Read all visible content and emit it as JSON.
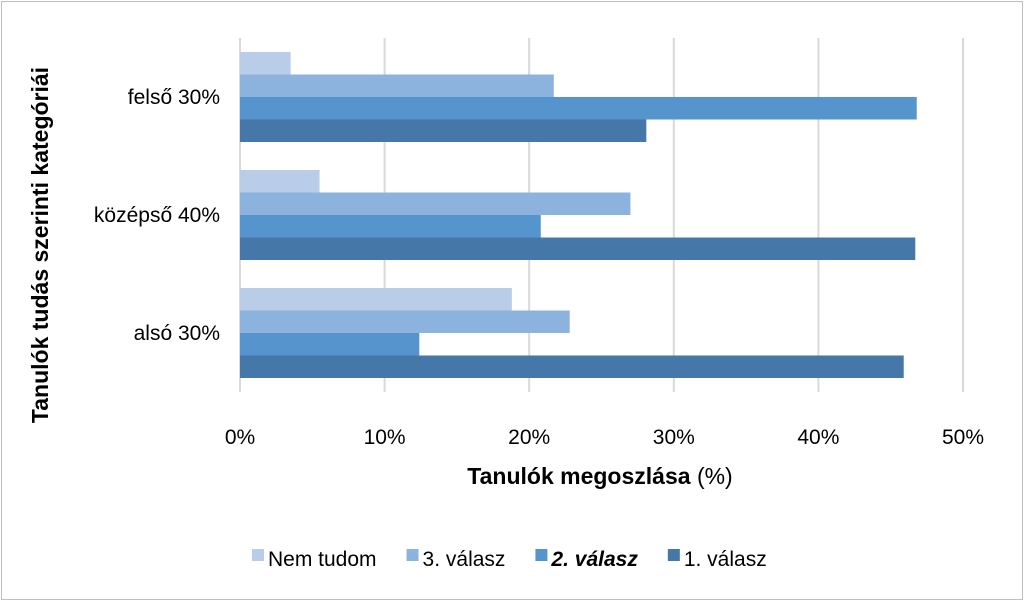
{
  "chart_data": {
    "type": "bar",
    "orientation": "horizontal",
    "categories": [
      "alsó 30%",
      "középső 40%",
      "felső 30%"
    ],
    "series": [
      {
        "name": "Nem tudom",
        "values": [
          18.8,
          5.5,
          3.5
        ],
        "color": "#b9cde8"
      },
      {
        "name": "3. válasz",
        "values": [
          22.8,
          27.0,
          21.7
        ],
        "color": "#8cb2de"
      },
      {
        "name": "2. válasz",
        "values": [
          12.4,
          20.8,
          46.8
        ],
        "color": "#5594cc",
        "emphasized": true
      },
      {
        "name": "1. válasz",
        "values": [
          45.9,
          46.7,
          28.1
        ],
        "color": "#4677a9"
      }
    ],
    "xlabel": "Tanulók megoszlása",
    "xlabel_unit": "(%)",
    "ylabel": "Tanulók tudás szerinti kategóriái",
    "xlim": [
      0,
      50
    ],
    "xticks": [
      "0%",
      "10%",
      "20%",
      "30%",
      "40%",
      "50%"
    ],
    "grid": true,
    "legend_position": "bottom"
  }
}
